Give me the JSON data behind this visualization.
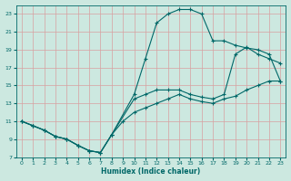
{
  "xlabel": "Humidex (Indice chaleur)",
  "bg_color": "#cce8e0",
  "line_color": "#006868",
  "grid_color": "#d8a0a0",
  "xlim": [
    -0.5,
    23.5
  ],
  "ylim": [
    7,
    24
  ],
  "xticks": [
    0,
    1,
    2,
    3,
    4,
    5,
    6,
    7,
    8,
    9,
    10,
    11,
    12,
    13,
    14,
    15,
    16,
    17,
    18,
    19,
    20,
    21,
    22,
    23
  ],
  "yticks": [
    7,
    9,
    11,
    13,
    15,
    17,
    19,
    21,
    23
  ],
  "curve1_x": [
    0,
    1,
    2,
    3,
    4,
    5,
    6,
    7,
    8,
    9,
    10,
    11,
    12,
    13,
    14,
    15,
    16,
    17,
    18,
    19,
    20,
    21,
    22,
    23
  ],
  "curve1_y": [
    11,
    10.5,
    10,
    9.3,
    9.0,
    8.3,
    7.7,
    7.5,
    9.5,
    11.0,
    12.0,
    12.5,
    13.0,
    13.5,
    14.0,
    13.5,
    13.2,
    13.0,
    13.5,
    13.8,
    14.5,
    15.0,
    15.5,
    15.5
  ],
  "curve2_x": [
    0,
    1,
    2,
    3,
    4,
    5,
    6,
    7,
    8,
    10,
    11,
    12,
    13,
    14,
    15,
    16,
    17,
    18,
    19,
    20,
    21,
    22,
    23
  ],
  "curve2_y": [
    11,
    10.5,
    10,
    9.3,
    9.0,
    8.3,
    7.7,
    7.5,
    9.5,
    13.5,
    14.0,
    14.5,
    14.5,
    14.5,
    14.0,
    13.7,
    13.5,
    14.0,
    18.5,
    19.3,
    18.5,
    18.0,
    17.5
  ],
  "curve3_x": [
    0,
    1,
    2,
    3,
    4,
    5,
    6,
    7,
    8,
    10,
    11,
    12,
    13,
    14,
    15,
    16,
    17,
    18,
    19,
    20,
    21,
    22,
    23
  ],
  "curve3_y": [
    11,
    10.5,
    10,
    9.3,
    9.0,
    8.3,
    7.7,
    7.5,
    9.5,
    14.0,
    18.0,
    22.0,
    23.0,
    23.5,
    23.5,
    23.0,
    20.0,
    20.0,
    19.5,
    19.2,
    19.0,
    18.5,
    15.5
  ]
}
